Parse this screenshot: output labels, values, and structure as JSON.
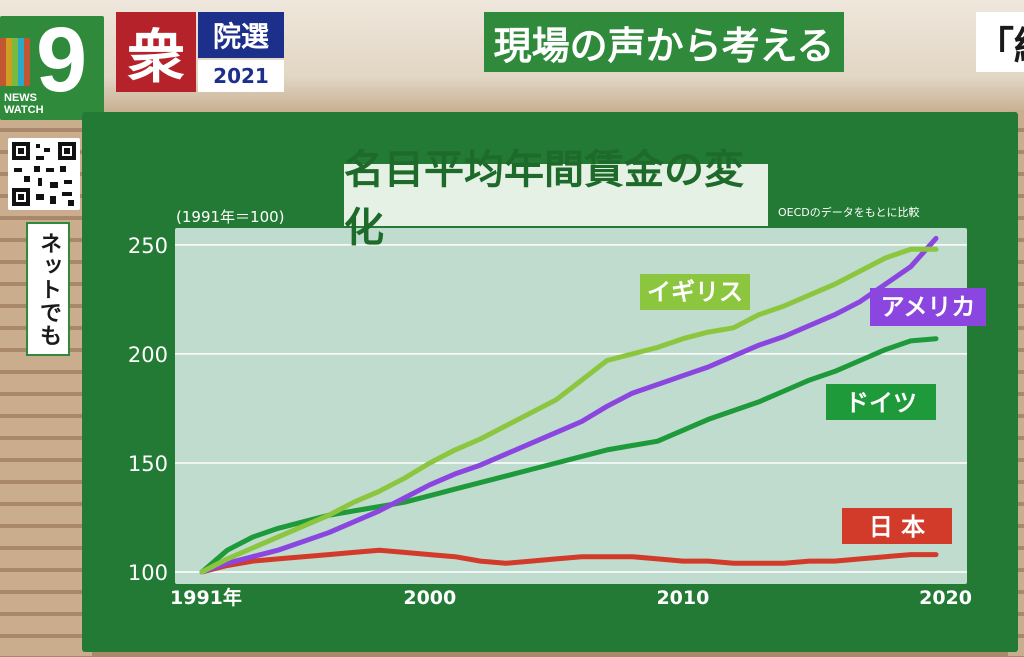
{
  "broadcast": {
    "logo_number": "9",
    "logo_text_line1": "NEWS",
    "logo_text_line2": "WATCH",
    "badge_char": "衆",
    "badge_label": "院選",
    "badge_year": "2021",
    "headline": "現場の声から考える",
    "headline_right_fragment": "「経",
    "side_label": "ネットでも"
  },
  "colors": {
    "panel": "#237a34",
    "plot_bg": "#bfdccf",
    "uk": "#8cc63f",
    "us": "#8b46e0",
    "de": "#1f9a3a",
    "jp": "#d23a2a"
  },
  "chart_data": {
    "type": "line",
    "title": "名目平均年間賃金の変化",
    "base_note": "(1991年＝100)",
    "source_note": "OECDのデータをもとに比較",
    "xlabel": "",
    "ylabel": "",
    "x_ticks": [
      {
        "value": 1991,
        "label": "1991年"
      },
      {
        "value": 2000,
        "label": "2000"
      },
      {
        "value": 2010,
        "label": "2010"
      },
      {
        "value": 2020,
        "label": "2020"
      }
    ],
    "y_ticks": [
      100,
      150,
      200,
      250
    ],
    "xlim": [
      1991,
      2020
    ],
    "ylim": [
      100,
      255
    ],
    "grid": true,
    "x": [
      1991,
      1992,
      1993,
      1994,
      1995,
      1996,
      1997,
      1998,
      1999,
      2000,
      2001,
      2002,
      2003,
      2004,
      2005,
      2006,
      2007,
      2008,
      2009,
      2010,
      2011,
      2012,
      2013,
      2014,
      2015,
      2016,
      2017,
      2018,
      2019,
      2020
    ],
    "series": [
      {
        "name": "イギリス",
        "color_key": "uk",
        "values": [
          100,
          106,
          111,
          116,
          121,
          126,
          132,
          137,
          143,
          150,
          156,
          161,
          167,
          173,
          179,
          188,
          197,
          200,
          203,
          207,
          210,
          212,
          218,
          222,
          227,
          232,
          238,
          244,
          248,
          248
        ]
      },
      {
        "name": "アメリカ",
        "color_key": "us",
        "values": [
          100,
          104,
          107,
          110,
          114,
          118,
          123,
          128,
          134,
          140,
          145,
          149,
          154,
          159,
          164,
          169,
          176,
          182,
          186,
          190,
          194,
          199,
          204,
          208,
          213,
          218,
          224,
          232,
          240,
          253
        ]
      },
      {
        "name": "ドイツ",
        "color_key": "de",
        "values": [
          100,
          110,
          116,
          120,
          123,
          126,
          128,
          130,
          132,
          135,
          138,
          141,
          144,
          147,
          150,
          153,
          156,
          158,
          160,
          165,
          170,
          174,
          178,
          183,
          188,
          192,
          197,
          202,
          206,
          207
        ]
      },
      {
        "name": "日 本",
        "color_key": "jp",
        "values": [
          100,
          103,
          105,
          106,
          107,
          108,
          109,
          110,
          109,
          108,
          107,
          105,
          104,
          105,
          106,
          107,
          107,
          107,
          106,
          105,
          105,
          104,
          104,
          104,
          105,
          105,
          106,
          107,
          108,
          108
        ]
      }
    ]
  }
}
